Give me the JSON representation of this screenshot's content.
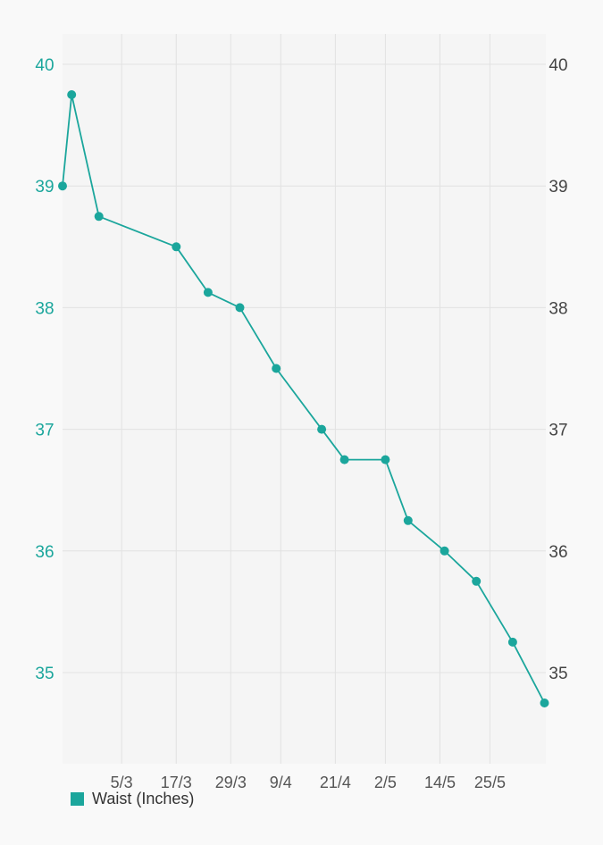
{
  "chart_data": {
    "type": "line",
    "title": "",
    "xlabel": "",
    "ylabel": "",
    "ylim": [
      34.4,
      40.25
    ],
    "yticks": [
      35,
      36,
      37,
      38,
      39,
      40
    ],
    "xticks": [
      "5/3",
      "17/3",
      "29/3",
      "9/4",
      "21/4",
      "2/5",
      "14/5",
      "25/5"
    ],
    "grid": true,
    "legend_position": "bottom-left",
    "colors": {
      "series": "#1ba69c",
      "left_axis_labels": "#1ba69c",
      "right_axis_labels": "#444444",
      "x_axis_labels": "#555555",
      "grid": "#e2e2e2",
      "plot_background": "#f5f5f5",
      "page_background": "#f9f9f9"
    },
    "series": [
      {
        "name": "Waist (Inches)",
        "x": [
          "20/2",
          "22/2",
          "28/2",
          "17/3",
          "24/3",
          "31/3",
          "8/4",
          "18/4",
          "23/4",
          "2/5",
          "7/5",
          "15/5",
          "22/5",
          "30/5",
          "6/6"
        ],
        "values": [
          39.0,
          39.75,
          38.75,
          38.5,
          38.125,
          38.0,
          37.5,
          37.0,
          36.75,
          36.75,
          36.25,
          36.0,
          35.75,
          35.25,
          34.75
        ]
      }
    ]
  }
}
